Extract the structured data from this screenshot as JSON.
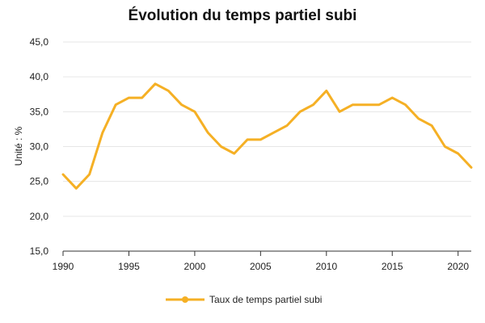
{
  "chart_data": {
    "type": "line",
    "title": "Évolution du temps partiel subi",
    "ylabel": "Unité : %",
    "xlabel": "",
    "xlim": [
      1990,
      2021
    ],
    "ylim": [
      15,
      45
    ],
    "x_ticks": [
      1990,
      1995,
      2000,
      2005,
      2010,
      2015,
      2020
    ],
    "y_ticks": [
      15,
      20,
      25,
      30,
      35,
      40,
      45
    ],
    "y_tick_labels": [
      "15,0",
      "20,0",
      "25,0",
      "30,0",
      "35,0",
      "40,0",
      "45,0"
    ],
    "grid": true,
    "legend_position": "bottom",
    "x": [
      1990,
      1991,
      1992,
      1993,
      1994,
      1995,
      1996,
      1997,
      1998,
      1999,
      2000,
      2001,
      2002,
      2003,
      2004,
      2005,
      2006,
      2007,
      2008,
      2009,
      2010,
      2011,
      2012,
      2013,
      2014,
      2015,
      2016,
      2017,
      2018,
      2019,
      2020,
      2021
    ],
    "series": [
      {
        "name": "Taux de temps partiel subi",
        "color": "#F5B025",
        "values": [
          26,
          24,
          26,
          32,
          36,
          37,
          37,
          39,
          38,
          36,
          35,
          32,
          30,
          29,
          31,
          31,
          32,
          33,
          35,
          36,
          38,
          35,
          36,
          36,
          36,
          37,
          36,
          34,
          33,
          30,
          29,
          27
        ]
      }
    ]
  }
}
